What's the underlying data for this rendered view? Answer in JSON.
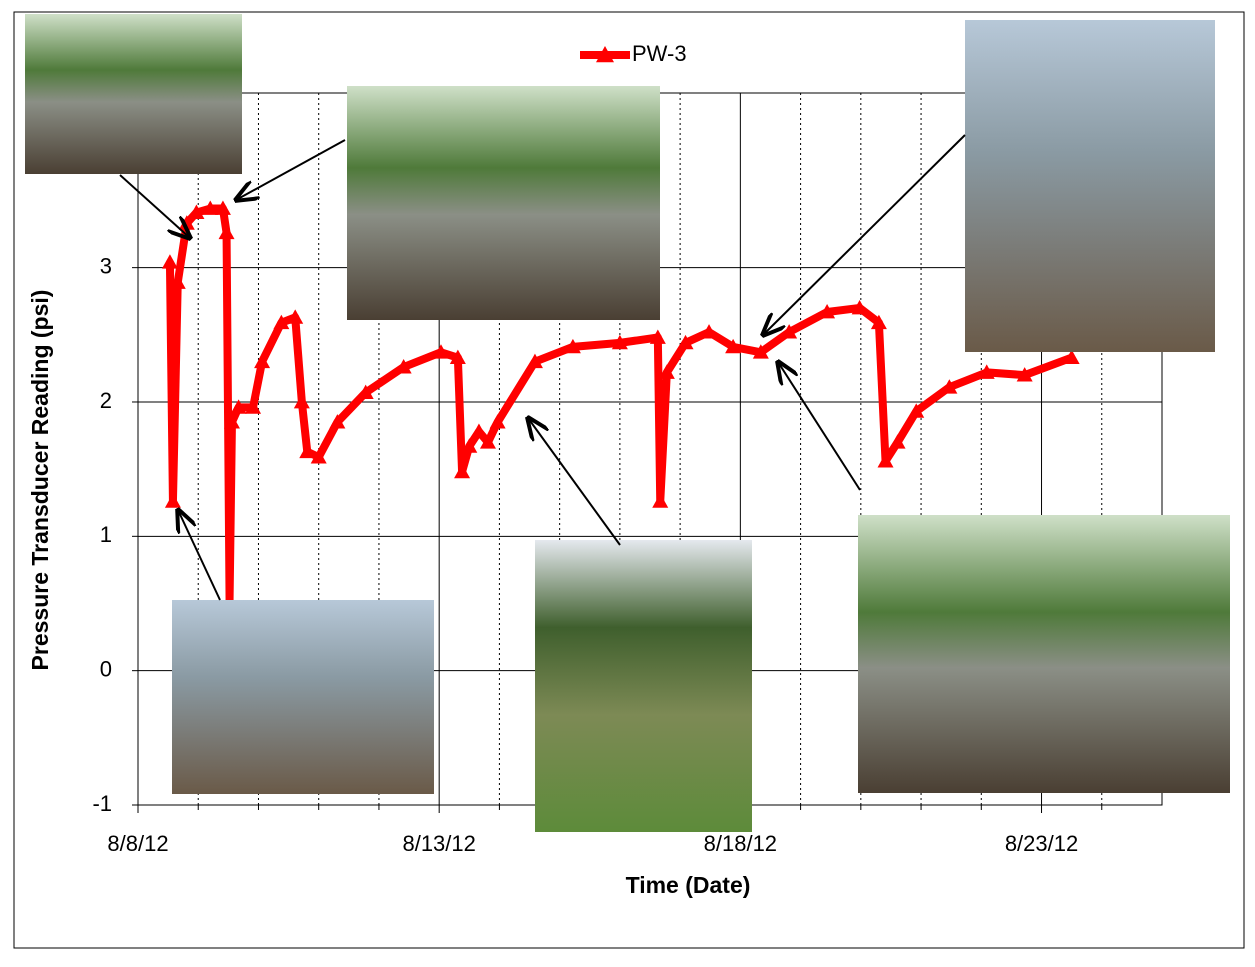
{
  "chart_data": {
    "type": "line",
    "x_label": "Time (Date)",
    "y_label": "Pressure Transducer Reading (psi)",
    "xlim": [
      8,
      25
    ],
    "ylim": [
      -1,
      4.3
    ],
    "xticks": [
      {
        "value": 8,
        "label": "8/8/12"
      },
      {
        "value": 13,
        "label": "8/13/12"
      },
      {
        "value": 18,
        "label": "8/18/12"
      },
      {
        "value": 23,
        "label": "8/23/12"
      }
    ],
    "x_minor_ticks": [
      9,
      10,
      11,
      12,
      14,
      15,
      16,
      17,
      19,
      20,
      21,
      22,
      24
    ],
    "yticks": [
      -1,
      0,
      1,
      2,
      3
    ],
    "grid": true,
    "legend": "top",
    "series": [
      {
        "name": "PW-3",
        "color": "#ff0000",
        "x": [
          8.53,
          8.58,
          8.66,
          8.81,
          8.97,
          9.2,
          9.41,
          9.47,
          9.52,
          9.56,
          9.67,
          9.91,
          10.06,
          10.38,
          10.61,
          10.72,
          10.81,
          11.0,
          11.31,
          11.78,
          12.41,
          13.03,
          13.31,
          13.38,
          13.5,
          13.66,
          13.81,
          13.97,
          14.59,
          15.22,
          16.0,
          16.63,
          16.67,
          16.78,
          17.09,
          17.48,
          17.88,
          18.34,
          18.81,
          19.44,
          19.98,
          20.3,
          20.41,
          20.61,
          20.92,
          21.47,
          22.09,
          22.72,
          23.5
        ],
        "values": [
          3.04,
          1.26,
          2.89,
          3.33,
          3.41,
          3.44,
          3.44,
          3.26,
          0.52,
          1.85,
          1.96,
          1.96,
          2.3,
          2.59,
          2.63,
          2.0,
          1.63,
          1.59,
          1.85,
          2.07,
          2.26,
          2.37,
          2.33,
          1.48,
          1.67,
          1.78,
          1.7,
          1.85,
          2.3,
          2.41,
          2.44,
          2.48,
          1.26,
          2.22,
          2.44,
          2.52,
          2.41,
          2.37,
          2.52,
          2.67,
          2.7,
          2.59,
          1.56,
          1.7,
          1.93,
          2.11,
          2.22,
          2.2,
          2.33
        ]
      }
    ]
  }
}
